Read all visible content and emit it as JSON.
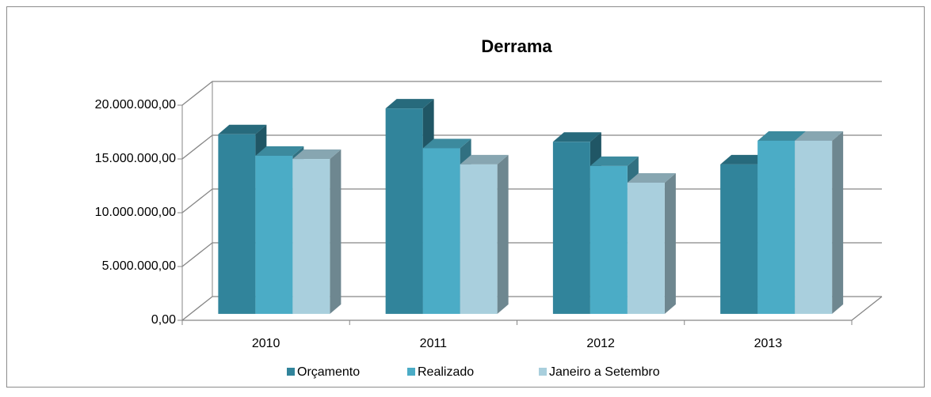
{
  "chart_data": {
    "type": "bar3d",
    "title": "Derrama",
    "categories": [
      "2010",
      "2011",
      "2012",
      "2013"
    ],
    "series": [
      {
        "name": "Orçamento",
        "color": "#31849b",
        "values": [
          16700000,
          19100000,
          16000000,
          13900000
        ]
      },
      {
        "name": "Realizado",
        "color": "#4bacc6",
        "values": [
          14700000,
          15400000,
          13750000,
          16100000
        ]
      },
      {
        "name": "Janeiro a Setembro",
        "color": "#a9cfdd",
        "values": [
          14400000,
          13900000,
          12200000,
          16100000
        ]
      }
    ],
    "ylim": [
      0,
      20000000
    ],
    "yticks": [
      {
        "value": 0,
        "label": "0,00"
      },
      {
        "value": 5000000,
        "label": "5.000.000,00"
      },
      {
        "value": 10000000,
        "label": "10.000.000,00"
      },
      {
        "value": 15000000,
        "label": "15.000.000,00"
      },
      {
        "value": 20000000,
        "label": "20.000.000,00"
      }
    ],
    "grid": true,
    "legend": "bottom"
  }
}
